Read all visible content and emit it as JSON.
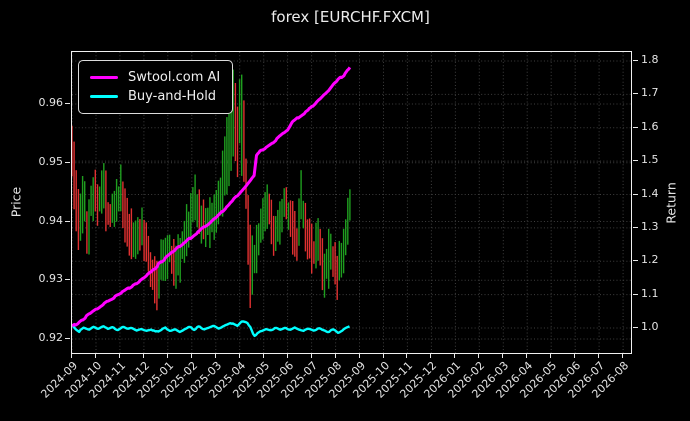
{
  "chart_data": {
    "type": "mixed",
    "title": "forex [EURCHF.FXCM]",
    "background_color": "#000000",
    "text_color": "#e8e8e8",
    "grid_color": "#3f3f3f",
    "grid_style": "dotted",
    "left_axis": {
      "label": "Price",
      "ticks": [
        0.92,
        0.93,
        0.94,
        0.95,
        0.96
      ],
      "range": [
        0.9176,
        0.9689
      ]
    },
    "right_axis": {
      "label": "Return",
      "ticks": [
        1.0,
        1.1,
        1.2,
        1.3,
        1.4,
        1.5,
        1.6,
        1.7,
        1.8
      ],
      "range": [
        0.925,
        1.827
      ]
    },
    "x_axis": {
      "tick_labels": [
        "2024-09",
        "2024-10",
        "2024-11",
        "2024-12",
        "2025-01",
        "2025-02",
        "2025-03",
        "2025-04",
        "2025-05",
        "2025-06",
        "2025-07",
        "2025-08",
        "2025-09",
        "2025-10",
        "2025-11",
        "2025-12",
        "2026-01",
        "2026-02",
        "2026-03",
        "2026-04",
        "2026-05",
        "2026-06",
        "2026-07",
        "2026-08"
      ],
      "data_span_months": 11.6
    },
    "legend": [
      {
        "label": "Swtool.com AI",
        "color": "#ff00ff"
      },
      {
        "label": "Buy-and-Hold",
        "color": "#00ffff"
      }
    ],
    "series": [
      {
        "name": "Swtool.com AI",
        "axis": "right",
        "type": "line",
        "color": "#ff00ff",
        "points": [
          [
            0,
            1.005
          ],
          [
            0.3,
            1.018
          ],
          [
            0.6,
            1.035
          ],
          [
            0.9,
            1.052
          ],
          [
            1.2,
            1.066
          ],
          [
            1.5,
            1.082
          ],
          [
            1.8,
            1.094
          ],
          [
            2.1,
            1.107
          ],
          [
            2.4,
            1.12
          ],
          [
            2.7,
            1.134
          ],
          [
            3.0,
            1.15
          ],
          [
            3.3,
            1.168
          ],
          [
            3.6,
            1.19
          ],
          [
            3.9,
            1.208
          ],
          [
            4.2,
            1.228
          ],
          [
            4.5,
            1.246
          ],
          [
            4.8,
            1.262
          ],
          [
            5.1,
            1.28
          ],
          [
            5.4,
            1.296
          ],
          [
            5.7,
            1.31
          ],
          [
            6.0,
            1.33
          ],
          [
            6.3,
            1.352
          ],
          [
            6.6,
            1.374
          ],
          [
            6.9,
            1.396
          ],
          [
            7.2,
            1.42
          ],
          [
            7.45,
            1.442
          ],
          [
            7.6,
            1.455
          ],
          [
            7.7,
            1.515
          ],
          [
            7.85,
            1.53
          ],
          [
            8.1,
            1.54
          ],
          [
            8.4,
            1.555
          ],
          [
            8.7,
            1.575
          ],
          [
            9.0,
            1.592
          ],
          [
            9.2,
            1.615
          ],
          [
            9.45,
            1.632
          ],
          [
            9.7,
            1.645
          ],
          [
            9.95,
            1.658
          ],
          [
            10.2,
            1.676
          ],
          [
            10.45,
            1.695
          ],
          [
            10.7,
            1.71
          ],
          [
            10.95,
            1.734
          ],
          [
            11.2,
            1.75
          ],
          [
            11.4,
            1.76
          ],
          [
            11.6,
            1.78
          ]
        ]
      },
      {
        "name": "Buy-and-Hold",
        "axis": "right",
        "type": "line",
        "color": "#00ffff",
        "points": [
          [
            0,
            1.012
          ],
          [
            0.15,
            0.998
          ],
          [
            0.3,
            0.99
          ],
          [
            0.5,
            1.0
          ],
          [
            0.7,
            0.994
          ],
          [
            0.9,
            1.004
          ],
          [
            1.1,
            0.997
          ],
          [
            1.3,
            1.007
          ],
          [
            1.5,
            0.997
          ],
          [
            1.7,
            1.002
          ],
          [
            1.9,
            0.994
          ],
          [
            2.1,
            1.004
          ],
          [
            2.3,
            0.997
          ],
          [
            2.5,
            1.001
          ],
          [
            2.7,
            0.993
          ],
          [
            2.9,
            0.998
          ],
          [
            3.1,
            0.991
          ],
          [
            3.3,
            0.996
          ],
          [
            3.5,
            0.987
          ],
          [
            3.7,
            0.994
          ],
          [
            3.9,
            1.0
          ],
          [
            4.1,
            0.992
          ],
          [
            4.3,
            0.998
          ],
          [
            4.5,
            0.989
          ],
          [
            4.7,
            0.996
          ],
          [
            4.9,
            1.003
          ],
          [
            5.1,
            0.996
          ],
          [
            5.3,
            1.004
          ],
          [
            5.5,
            0.995
          ],
          [
            5.7,
            1.0
          ],
          [
            5.9,
            1.006
          ],
          [
            6.1,
            0.997
          ],
          [
            6.3,
            1.003
          ],
          [
            6.5,
            1.01
          ],
          [
            6.7,
            1.016
          ],
          [
            6.9,
            1.008
          ],
          [
            7.1,
            1.021
          ],
          [
            7.3,
            1.017
          ],
          [
            7.45,
            1.004
          ],
          [
            7.6,
            0.977
          ],
          [
            7.75,
            0.984
          ],
          [
            7.9,
            0.991
          ],
          [
            8.1,
            0.997
          ],
          [
            8.3,
            0.993
          ],
          [
            8.5,
            0.999
          ],
          [
            8.7,
            0.994
          ],
          [
            8.9,
            1.0
          ],
          [
            9.1,
            0.995
          ],
          [
            9.3,
            1.002
          ],
          [
            9.5,
            0.996
          ],
          [
            9.7,
            0.992
          ],
          [
            9.9,
            0.998
          ],
          [
            10.1,
            0.993
          ],
          [
            10.3,
            0.999
          ],
          [
            10.5,
            0.994
          ],
          [
            10.7,
            0.989
          ],
          [
            10.9,
            0.996
          ],
          [
            11.1,
            0.984
          ],
          [
            11.3,
            0.993
          ],
          [
            11.45,
            1.0
          ],
          [
            11.6,
            1.005
          ]
        ]
      },
      {
        "name": "EURCHF price bars",
        "axis": "left",
        "type": "ohlc_bars",
        "up_color": "#1f9e1f",
        "down_color": "#e03131",
        "bar_count": 132,
        "seed": 1337,
        "envelope": [
          [
            0,
            0.952,
            0.01
          ],
          [
            0.12,
            0.9455,
            0.008
          ],
          [
            0.3,
            0.9395,
            0.007
          ],
          [
            0.5,
            0.9435,
            0.006
          ],
          [
            0.65,
            0.9375,
            0.007
          ],
          [
            0.85,
            0.9455,
            0.006
          ],
          [
            1.05,
            0.9425,
            0.006
          ],
          [
            1.3,
            0.9465,
            0.006
          ],
          [
            1.55,
            0.9405,
            0.005
          ],
          [
            1.8,
            0.9435,
            0.005
          ],
          [
            2.05,
            0.9445,
            0.006
          ],
          [
            2.3,
            0.9395,
            0.005
          ],
          [
            2.55,
            0.9365,
            0.005
          ],
          [
            2.8,
            0.9385,
            0.005
          ],
          [
            3.05,
            0.9368,
            0.005
          ],
          [
            3.3,
            0.9325,
            0.005
          ],
          [
            3.55,
            0.9285,
            0.006
          ],
          [
            3.8,
            0.9338,
            0.005
          ],
          [
            4.05,
            0.9352,
            0.005
          ],
          [
            4.35,
            0.9315,
            0.006
          ],
          [
            4.65,
            0.9368,
            0.005
          ],
          [
            4.95,
            0.9408,
            0.005
          ],
          [
            5.2,
            0.9432,
            0.006
          ],
          [
            5.45,
            0.939,
            0.005
          ],
          [
            5.7,
            0.94,
            0.005
          ],
          [
            5.95,
            0.9415,
            0.005
          ],
          [
            6.25,
            0.9448,
            0.006
          ],
          [
            6.5,
            0.951,
            0.009
          ],
          [
            6.7,
            0.9575,
            0.01
          ],
          [
            6.9,
            0.9525,
            0.009
          ],
          [
            7.05,
            0.9585,
            0.009
          ],
          [
            7.25,
            0.948,
            0.009
          ],
          [
            7.45,
            0.9295,
            0.009
          ],
          [
            7.65,
            0.9345,
            0.006
          ],
          [
            7.9,
            0.9388,
            0.005
          ],
          [
            8.15,
            0.9438,
            0.005
          ],
          [
            8.4,
            0.9372,
            0.005
          ],
          [
            8.65,
            0.9408,
            0.005
          ],
          [
            8.9,
            0.9432,
            0.005
          ],
          [
            9.15,
            0.9402,
            0.005
          ],
          [
            9.4,
            0.9352,
            0.005
          ],
          [
            9.56,
            0.9435,
            0.006
          ],
          [
            9.8,
            0.939,
            0.005
          ],
          [
            10.05,
            0.934,
            0.005
          ],
          [
            10.3,
            0.9368,
            0.005
          ],
          [
            10.55,
            0.931,
            0.006
          ],
          [
            10.8,
            0.935,
            0.005
          ],
          [
            11.05,
            0.9308,
            0.006
          ],
          [
            11.3,
            0.9328,
            0.005
          ],
          [
            11.45,
            0.9378,
            0.005
          ],
          [
            11.6,
            0.9428,
            0.005
          ]
        ]
      }
    ]
  }
}
